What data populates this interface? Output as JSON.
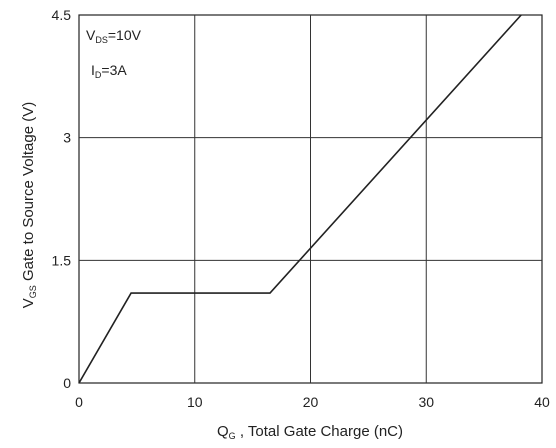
{
  "chart_data": {
    "type": "line",
    "xlabel_main": "Q",
    "xlabel_sub": "G",
    "xlabel_rest": " , Total Gate Charge (nC)",
    "ylabel_main": "V",
    "ylabel_sub": "GS",
    "ylabel_rest": "Gate to Source Voltage (V)",
    "xlim": [
      0,
      40
    ],
    "ylim": [
      0,
      4.5
    ],
    "xticks": [
      0,
      10,
      20,
      30,
      40
    ],
    "xtick_labels": [
      "0",
      "10",
      "20",
      "30",
      "40"
    ],
    "yticks": [
      0,
      1.5,
      3,
      4.5
    ],
    "ytick_labels": [
      "0",
      "1.5",
      "3",
      "4.5"
    ],
    "grid": true,
    "series": [
      {
        "x": [
          0,
          4.5,
          16.5,
          38.2
        ],
        "y": [
          0,
          1.1,
          1.1,
          4.5
        ]
      }
    ],
    "annotations": [
      {
        "main": "V",
        "sub": "DS",
        "rest": "=10V"
      },
      {
        "main": "I",
        "sub": "D",
        "rest": "=3A"
      }
    ]
  }
}
